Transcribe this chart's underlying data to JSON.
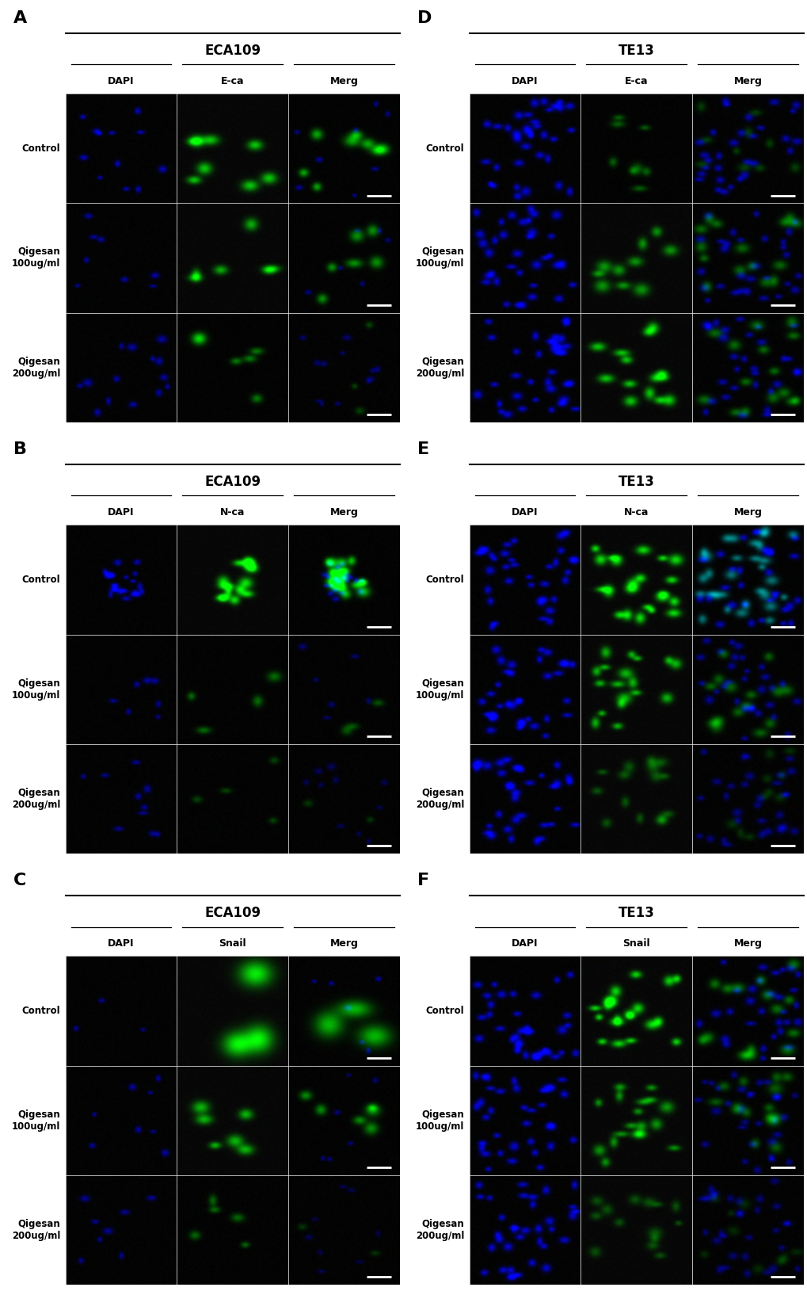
{
  "fig_width": 10.2,
  "fig_height": 16.29,
  "background_color": "#ffffff",
  "panel_label_fontsize": 16,
  "panel_label_fontweight": "bold",
  "group_title_fontsize": 12,
  "group_title_fontweight": "bold",
  "col_header_fontsize": 9,
  "col_header_fontweight": "bold",
  "row_label_fontsize": 8.5,
  "row_label_fontweight": "bold",
  "panels": [
    "A",
    "B",
    "C",
    "D",
    "E",
    "F"
  ],
  "panel_labels": {
    "A": "A",
    "B": "B",
    "C": "C",
    "D": "D",
    "E": "E",
    "F": "F"
  },
  "group_titles": {
    "A": "ECA109",
    "B": "ECA109",
    "C": "ECA109",
    "D": "TE13",
    "E": "TE13",
    "F": "TE13"
  },
  "col_headers": {
    "A": [
      "DAPI",
      "E-ca",
      "Merg"
    ],
    "B": [
      "DAPI",
      "N-ca",
      "Merg"
    ],
    "C": [
      "DAPI",
      "Snail",
      "Merg"
    ],
    "D": [
      "DAPI",
      "E-ca",
      "Merg"
    ],
    "E": [
      "DAPI",
      "N-ca",
      "Merg"
    ],
    "F": [
      "DAPI",
      "Snail",
      "Merg"
    ]
  },
  "row_labels": [
    "Control",
    "Qigesan\n100ug/ml",
    "Qigesan\n200ug/ml"
  ],
  "cell_specs": {
    "A_0_0": {
      "ch": "blue",
      "density": "sparse",
      "bright": 0.75,
      "n": 12
    },
    "A_0_1": {
      "ch": "green",
      "density": "medium_blob",
      "bright": 0.75,
      "n": 8
    },
    "A_0_2": {
      "ch": "merge_gb",
      "density": "medium_blob",
      "bright": 0.75,
      "n": 8
    },
    "A_1_0": {
      "ch": "blue",
      "density": "sparse",
      "bright": 0.65,
      "n": 8
    },
    "A_1_1": {
      "ch": "green",
      "density": "medium_blob",
      "bright": 0.65,
      "n": 6
    },
    "A_1_2": {
      "ch": "merge_gb",
      "density": "medium_blob",
      "bright": 0.65,
      "n": 6
    },
    "A_2_0": {
      "ch": "blue",
      "density": "scattered",
      "bright": 0.65,
      "n": 14
    },
    "A_2_1": {
      "ch": "green",
      "density": "sparse_blob",
      "bright": 0.45,
      "n": 6
    },
    "A_2_2": {
      "ch": "merge_gb",
      "density": "scattered",
      "bright": 0.5,
      "n": 12
    },
    "B_0_0": {
      "ch": "blue",
      "density": "cluster",
      "bright": 0.75,
      "n": 22
    },
    "B_0_1": {
      "ch": "green",
      "density": "cluster_blob",
      "bright": 0.85,
      "n": 14
    },
    "B_0_2": {
      "ch": "merge_gb",
      "density": "cluster_blob",
      "bright": 0.85,
      "n": 20
    },
    "B_1_0": {
      "ch": "blue",
      "density": "sparse",
      "bright": 0.6,
      "n": 7
    },
    "B_1_1": {
      "ch": "green",
      "density": "sparse_blob",
      "bright": 0.4,
      "n": 4
    },
    "B_1_2": {
      "ch": "merge_gb",
      "density": "sparse",
      "bright": 0.5,
      "n": 6
    },
    "B_2_0": {
      "ch": "blue",
      "density": "scattered",
      "bright": 0.6,
      "n": 10
    },
    "B_2_1": {
      "ch": "green",
      "density": "very_dim",
      "bright": 0.25,
      "n": 4
    },
    "B_2_2": {
      "ch": "merge_gb",
      "density": "scattered",
      "bright": 0.4,
      "n": 10
    },
    "C_0_0": {
      "ch": "blue",
      "density": "very_sparse",
      "bright": 0.6,
      "n": 3
    },
    "C_0_1": {
      "ch": "green",
      "density": "big_blob",
      "bright": 0.9,
      "n": 3
    },
    "C_0_2": {
      "ch": "merge_gb",
      "density": "big_blob",
      "bright": 0.82,
      "n": 3
    },
    "C_1_0": {
      "ch": "blue",
      "density": "sparse",
      "bright": 0.65,
      "n": 8
    },
    "C_1_1": {
      "ch": "green",
      "density": "medium_blob",
      "bright": 0.68,
      "n": 6
    },
    "C_1_2": {
      "ch": "merge_gb",
      "density": "medium_blob",
      "bright": 0.62,
      "n": 6
    },
    "C_2_0": {
      "ch": "blue",
      "density": "scattered",
      "bright": 0.6,
      "n": 8
    },
    "C_2_1": {
      "ch": "green",
      "density": "sparse_blob",
      "bright": 0.38,
      "n": 5
    },
    "C_2_2": {
      "ch": "merge_gb",
      "density": "scattered",
      "bright": 0.38,
      "n": 8
    },
    "D_0_0": {
      "ch": "blue",
      "density": "dense",
      "bright": 0.82,
      "n": 35
    },
    "D_0_1": {
      "ch": "green",
      "density": "sparse_blob",
      "bright": 0.35,
      "n": 8
    },
    "D_0_2": {
      "ch": "merge_bg_dim",
      "density": "dense",
      "bright": 0.75,
      "n": 30
    },
    "D_1_0": {
      "ch": "blue",
      "density": "dense",
      "bright": 0.82,
      "n": 35
    },
    "D_1_1": {
      "ch": "green",
      "density": "scattered_blob",
      "bright": 0.55,
      "n": 10
    },
    "D_1_2": {
      "ch": "merge_gb",
      "density": "dense",
      "bright": 0.68,
      "n": 30
    },
    "D_2_0": {
      "ch": "blue",
      "density": "dense",
      "bright": 0.82,
      "n": 35
    },
    "D_2_1": {
      "ch": "green",
      "density": "scattered_blob",
      "bright": 0.75,
      "n": 14
    },
    "D_2_2": {
      "ch": "merge_gb",
      "density": "dense",
      "bright": 0.72,
      "n": 30
    },
    "E_0_0": {
      "ch": "blue",
      "density": "dense",
      "bright": 0.82,
      "n": 35
    },
    "E_0_1": {
      "ch": "green",
      "density": "dense_blob",
      "bright": 0.85,
      "n": 22
    },
    "E_0_2": {
      "ch": "merge_teal",
      "density": "dense",
      "bright": 0.82,
      "n": 30
    },
    "E_1_0": {
      "ch": "blue",
      "density": "dense",
      "bright": 0.82,
      "n": 35
    },
    "E_1_1": {
      "ch": "green",
      "density": "dense_blob",
      "bright": 0.68,
      "n": 18
    },
    "E_1_2": {
      "ch": "merge_gb",
      "density": "dense",
      "bright": 0.65,
      "n": 30
    },
    "E_2_0": {
      "ch": "blue",
      "density": "dense",
      "bright": 0.82,
      "n": 35
    },
    "E_2_1": {
      "ch": "green",
      "density": "dense_blob",
      "bright": 0.3,
      "n": 15
    },
    "E_2_2": {
      "ch": "merge_bg_dim",
      "density": "dense",
      "bright": 0.55,
      "n": 30
    },
    "F_0_0": {
      "ch": "blue",
      "density": "dense",
      "bright": 0.82,
      "n": 35
    },
    "F_0_1": {
      "ch": "green",
      "density": "dense_blob",
      "bright": 0.82,
      "n": 20
    },
    "F_0_2": {
      "ch": "merge_gb",
      "density": "dense",
      "bright": 0.75,
      "n": 30
    },
    "F_1_0": {
      "ch": "blue",
      "density": "dense",
      "bright": 0.82,
      "n": 35
    },
    "F_1_1": {
      "ch": "green",
      "density": "dense_blob",
      "bright": 0.55,
      "n": 18
    },
    "F_1_2": {
      "ch": "merge_gb",
      "density": "dense",
      "bright": 0.6,
      "n": 30
    },
    "F_2_0": {
      "ch": "blue",
      "density": "dense",
      "bright": 0.82,
      "n": 35
    },
    "F_2_1": {
      "ch": "green",
      "density": "dense_blob",
      "bright": 0.28,
      "n": 14
    },
    "F_2_2": {
      "ch": "merge_bg_dim",
      "density": "dense",
      "bright": 0.5,
      "n": 30
    }
  }
}
